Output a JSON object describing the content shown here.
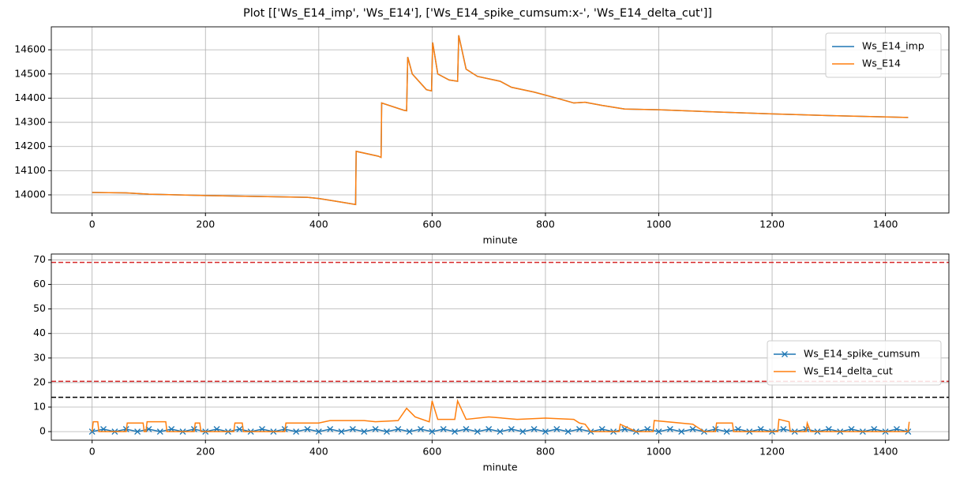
{
  "title": "Plot [['Ws_E14_imp', 'Ws_E14'], ['Ws_E14_spike_cumsum:x-', 'Ws_E14_delta_cut']]",
  "chart_data": [
    {
      "type": "line",
      "xlabel": "minute",
      "grid": true,
      "legend": "upper right",
      "xlim": [
        -72,
        1512
      ],
      "xticks": [
        0,
        200,
        400,
        600,
        800,
        1000,
        1200,
        1400
      ],
      "ylim": [
        13925,
        14695
      ],
      "yticks": [
        14000,
        14100,
        14200,
        14300,
        14400,
        14500,
        14600
      ],
      "hlines": [],
      "series": [
        {
          "name": "Ws_E14_imp",
          "color": "#1f77b4",
          "x": [
            0,
            60,
            100,
            200,
            300,
            380,
            400,
            440,
            465,
            466,
            505,
            510,
            511,
            550,
            555,
            557,
            565,
            590,
            599,
            601,
            610,
            630,
            645,
            647,
            660,
            680,
            720,
            740,
            780,
            820,
            850,
            870,
            900,
            940,
            1000,
            1100,
            1200,
            1300,
            1440
          ],
          "values": [
            14010,
            14008,
            14003,
            13997,
            13993,
            13990,
            13985,
            13970,
            13960,
            14180,
            14160,
            14155,
            14380,
            14350,
            14348,
            14570,
            14500,
            14435,
            14430,
            14630,
            14500,
            14475,
            14470,
            14660,
            14520,
            14490,
            14470,
            14445,
            14425,
            14400,
            14380,
            14383,
            14370,
            14355,
            14352,
            14343,
            14335,
            14328,
            14320
          ]
        },
        {
          "name": "Ws_E14",
          "color": "#ff7f0e",
          "x": [
            0,
            60,
            100,
            200,
            300,
            380,
            400,
            440,
            465,
            466,
            505,
            510,
            511,
            550,
            555,
            557,
            565,
            590,
            599,
            601,
            610,
            630,
            645,
            647,
            660,
            680,
            720,
            740,
            780,
            820,
            850,
            870,
            900,
            940,
            1000,
            1100,
            1200,
            1300,
            1440
          ],
          "values": [
            14010,
            14008,
            14003,
            13997,
            13993,
            13990,
            13985,
            13970,
            13960,
            14180,
            14160,
            14155,
            14380,
            14350,
            14348,
            14570,
            14500,
            14435,
            14430,
            14630,
            14500,
            14475,
            14470,
            14660,
            14520,
            14490,
            14470,
            14445,
            14425,
            14400,
            14380,
            14383,
            14370,
            14355,
            14352,
            14343,
            14335,
            14328,
            14320
          ]
        }
      ]
    },
    {
      "type": "line",
      "xlabel": "minute",
      "grid": true,
      "legend": "center right",
      "xlim": [
        -72,
        1512
      ],
      "xticks": [
        0,
        200,
        400,
        600,
        800,
        1000,
        1200,
        1400
      ],
      "ylim": [
        -3.5,
        72.4
      ],
      "yticks": [
        0,
        10,
        20,
        30,
        40,
        50,
        60,
        70
      ],
      "hlines": [
        {
          "y": 69,
          "color": "#d62728"
        },
        {
          "y": 20.5,
          "color": "#d62728"
        },
        {
          "y": 14,
          "color": "#000000"
        }
      ],
      "series": [
        {
          "name": "Ws_E14_spike_cumsum",
          "color": "#1f77b4",
          "marker": "x",
          "x": [
            0,
            20,
            40,
            60,
            80,
            100,
            120,
            140,
            160,
            180,
            200,
            220,
            240,
            260,
            280,
            300,
            320,
            340,
            360,
            380,
            400,
            420,
            440,
            460,
            480,
            500,
            520,
            540,
            560,
            580,
            600,
            620,
            640,
            660,
            680,
            700,
            720,
            740,
            760,
            780,
            800,
            820,
            840,
            860,
            880,
            900,
            920,
            940,
            960,
            980,
            1000,
            1020,
            1040,
            1060,
            1080,
            1100,
            1120,
            1140,
            1160,
            1180,
            1200,
            1220,
            1240,
            1260,
            1280,
            1300,
            1320,
            1340,
            1360,
            1380,
            1400,
            1420,
            1440
          ],
          "values": [
            0,
            1,
            0,
            1,
            0,
            1,
            0,
            1,
            0,
            1,
            0,
            1,
            0,
            1,
            0,
            1,
            0,
            1,
            0,
            1,
            0,
            1,
            0,
            1,
            0,
            1,
            0,
            1,
            0,
            1,
            0,
            1,
            0,
            1,
            0,
            1,
            0,
            1,
            0,
            1,
            0,
            1,
            0,
            1,
            0,
            1,
            0,
            1,
            0,
            1,
            0,
            1,
            0,
            1,
            0,
            1,
            0,
            1,
            0,
            1,
            0,
            1,
            0,
            1,
            0,
            1,
            0,
            1,
            0,
            1,
            0,
            1,
            0
          ]
        },
        {
          "name": "Ws_E14_delta_cut",
          "color": "#ff7f0e",
          "x": [
            0,
            2,
            10,
            12,
            60,
            62,
            90,
            92,
            95,
            97,
            130,
            132,
            180,
            182,
            190,
            192,
            250,
            252,
            265,
            267,
            340,
            342,
            400,
            420,
            480,
            500,
            540,
            555,
            570,
            595,
            600,
            610,
            640,
            645,
            660,
            700,
            750,
            800,
            850,
            860,
            870,
            880,
            930,
            932,
            960,
            990,
            992,
            1060,
            1080,
            1100,
            1102,
            1130,
            1132,
            1210,
            1212,
            1230,
            1232,
            1260,
            1262,
            1268,
            1440,
            1442
          ],
          "values": [
            0,
            4,
            4,
            0,
            0,
            3.5,
            3.5,
            0,
            0,
            4,
            4,
            0,
            0,
            3.5,
            3.5,
            0,
            0,
            3.5,
            3.5,
            0,
            0,
            3.5,
            3.5,
            4.5,
            4.5,
            4,
            4.5,
            9.5,
            6,
            4,
            12.5,
            5,
            5,
            12.5,
            5,
            6,
            5,
            5.5,
            5,
            3.5,
            3,
            0,
            0,
            3,
            0,
            0,
            4.5,
            3,
            0,
            0,
            3.5,
            3.5,
            0,
            0,
            5,
            4,
            0,
            0,
            3.5,
            0,
            0,
            4
          ]
        }
      ]
    }
  ]
}
